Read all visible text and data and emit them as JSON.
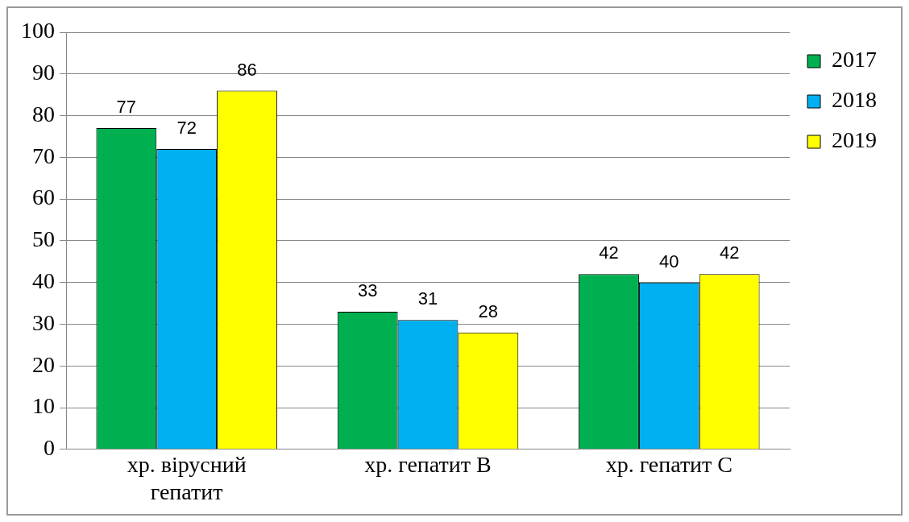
{
  "chart_data": {
    "type": "bar",
    "categories": [
      "хр. вірусний гепатит",
      "хр. гепатит В",
      "хр. гепатит С"
    ],
    "series": [
      {
        "name": "2017",
        "color": "#00b050",
        "values": [
          77,
          33,
          42
        ]
      },
      {
        "name": "2018",
        "color": "#00b0f0",
        "values": [
          72,
          31,
          40
        ]
      },
      {
        "name": "2019",
        "color": "#ffff00",
        "values": [
          86,
          28,
          42
        ]
      }
    ],
    "ylim": [
      0,
      100
    ],
    "yticks": [
      0,
      10,
      20,
      30,
      40,
      50,
      60,
      70,
      80,
      90,
      100
    ],
    "grid": "y",
    "legend": "top right",
    "data_labels": true
  }
}
